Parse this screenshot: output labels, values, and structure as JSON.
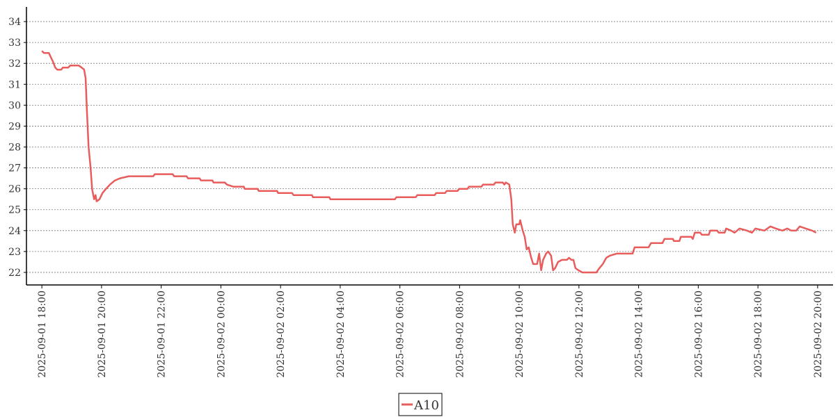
{
  "chart_data": {
    "type": "line",
    "x": [
      "2025-09-01 18:00",
      "2025-09-01 18:04",
      "2025-09-01 18:14",
      "2025-09-01 18:18",
      "2025-09-01 18:22",
      "2025-09-01 18:27",
      "2025-09-01 18:31",
      "2025-09-01 18:39",
      "2025-09-01 18:42",
      "2025-09-01 18:53",
      "2025-09-01 18:57",
      "2025-09-01 19:14",
      "2025-09-01 19:20",
      "2025-09-01 19:25",
      "2025-09-01 19:28",
      "2025-09-01 19:31",
      "2025-09-01 19:34",
      "2025-09-01 19:38",
      "2025-09-01 19:41",
      "2025-09-01 19:45",
      "2025-09-01 19:48",
      "2025-09-01 19:50",
      "2025-09-01 19:56",
      "2025-09-01 20:02",
      "2025-09-01 20:09",
      "2025-09-01 20:17",
      "2025-09-01 20:27",
      "2025-09-01 20:37",
      "2025-09-01 20:55",
      "2025-09-01 21:44",
      "2025-09-01 21:47",
      "2025-09-01 22:23",
      "2025-09-01 22:26",
      "2025-09-01 22:51",
      "2025-09-01 22:54",
      "2025-09-01 23:17",
      "2025-09-01 23:20",
      "2025-09-01 23:43",
      "2025-09-01 23:45",
      "2025-09-02 00:08",
      "2025-09-02 00:12",
      "2025-09-02 00:25",
      "2025-09-02 00:46",
      "2025-09-02 00:48",
      "2025-09-02 01:14",
      "2025-09-02 01:16",
      "2025-09-02 01:53",
      "2025-09-02 01:55",
      "2025-09-02 02:23",
      "2025-09-02 02:26",
      "2025-09-02 03:03",
      "2025-09-02 03:05",
      "2025-09-02 03:38",
      "2025-09-02 03:40",
      "2025-09-02 05:50",
      "2025-09-02 05:53",
      "2025-09-02 06:32",
      "2025-09-02 06:35",
      "2025-09-02 07:10",
      "2025-09-02 07:13",
      "2025-09-02 07:31",
      "2025-09-02 07:34",
      "2025-09-02 07:56",
      "2025-09-02 07:59",
      "2025-09-02 08:16",
      "2025-09-02 08:19",
      "2025-09-02 08:44",
      "2025-09-02 08:47",
      "2025-09-02 09:09",
      "2025-09-02 09:12",
      "2025-09-02 09:27",
      "2025-09-02 09:30",
      "2025-09-02 09:33",
      "2025-09-02 09:40",
      "2025-09-02 09:44",
      "2025-09-02 09:47",
      "2025-09-02 09:51",
      "2025-09-02 09:54",
      "2025-09-02 10:00",
      "2025-09-02 10:02",
      "2025-09-02 10:07",
      "2025-09-02 10:11",
      "2025-09-02 10:15",
      "2025-09-02 10:19",
      "2025-09-02 10:24",
      "2025-09-02 10:28",
      "2025-09-02 10:36",
      "2025-09-02 10:40",
      "2025-09-02 10:44",
      "2025-09-02 10:48",
      "2025-09-02 10:54",
      "2025-09-02 10:58",
      "2025-09-02 11:04",
      "2025-09-02 11:08",
      "2025-09-02 11:12",
      "2025-09-02 11:18",
      "2025-09-02 11:26",
      "2025-09-02 11:36",
      "2025-09-02 11:40",
      "2025-09-02 11:45",
      "2025-09-02 11:49",
      "2025-09-02 11:53",
      "2025-09-02 11:59",
      "2025-09-02 12:07",
      "2025-09-02 12:35",
      "2025-09-02 12:41",
      "2025-09-02 12:48",
      "2025-09-02 12:55",
      "2025-09-02 13:02",
      "2025-09-02 13:16",
      "2025-09-02 13:48",
      "2025-09-02 13:52",
      "2025-09-02 14:20",
      "2025-09-02 14:25",
      "2025-09-02 14:48",
      "2025-09-02 14:52",
      "2025-09-02 15:09",
      "2025-09-02 15:11",
      "2025-09-02 15:22",
      "2025-09-02 15:25",
      "2025-09-02 15:46",
      "2025-09-02 15:49",
      "2025-09-02 15:53",
      "2025-09-02 16:04",
      "2025-09-02 16:07",
      "2025-09-02 16:21",
      "2025-09-02 16:24",
      "2025-09-02 16:38",
      "2025-09-02 16:41",
      "2025-09-02 16:53",
      "2025-09-02 16:56",
      "2025-09-02 17:06",
      "2025-09-02 17:13",
      "2025-09-02 17:23",
      "2025-09-02 17:38",
      "2025-09-02 17:48",
      "2025-09-02 17:55",
      "2025-09-02 18:13",
      "2025-09-02 18:25",
      "2025-09-02 18:36",
      "2025-09-02 18:49",
      "2025-09-02 18:59",
      "2025-09-02 19:07",
      "2025-09-02 19:17",
      "2025-09-02 19:24",
      "2025-09-02 19:36",
      "2025-09-02 19:49",
      "2025-09-02 19:57"
    ],
    "series": [
      {
        "name": "A10",
        "color": "#e85c5c",
        "values": [
          32.6,
          32.5,
          32.5,
          32.3,
          32.1,
          31.8,
          31.7,
          31.7,
          31.8,
          31.8,
          31.9,
          31.9,
          31.8,
          31.7,
          31.3,
          29.5,
          28,
          27,
          26,
          25.5,
          25.7,
          25.4,
          25.5,
          25.8,
          26.0,
          26.2,
          26.4,
          26.5,
          26.6,
          26.6,
          26.7,
          26.7,
          26.6,
          26.6,
          26.5,
          26.5,
          26.4,
          26.4,
          26.3,
          26.3,
          26.2,
          26.1,
          26.1,
          26.0,
          26.0,
          25.9,
          25.9,
          25.8,
          25.8,
          25.7,
          25.7,
          25.6,
          25.6,
          25.5,
          25.5,
          25.6,
          25.6,
          25.7,
          25.7,
          25.8,
          25.8,
          25.9,
          25.9,
          26.0,
          26.0,
          26.1,
          26.1,
          26.2,
          26.2,
          26.3,
          26.3,
          26.2,
          26.3,
          26.2,
          25.5,
          24.3,
          23.9,
          24.3,
          24.3,
          24.5,
          24.0,
          23.7,
          23.1,
          23.2,
          22.7,
          22.4,
          22.4,
          22.9,
          22.1,
          22.6,
          22.9,
          23.0,
          22.8,
          22.1,
          22.2,
          22.5,
          22.6,
          22.6,
          22.7,
          22.6,
          22.6,
          22.2,
          22.1,
          22.0,
          22.0,
          22.2,
          22.4,
          22.7,
          22.8,
          22.9,
          22.9,
          23.2,
          23.2,
          23.4,
          23.4,
          23.6,
          23.6,
          23.5,
          23.5,
          23.7,
          23.7,
          23.6,
          23.9,
          23.9,
          23.8,
          23.8,
          24.0,
          24.0,
          23.9,
          23.9,
          24.1,
          24.0,
          23.9,
          24.1,
          24.0,
          23.9,
          24.1,
          24.0,
          24.2,
          24.1,
          24.0,
          24.1,
          24.0,
          24.0,
          24.2,
          24.1,
          24.0,
          23.9
        ]
      }
    ],
    "xlim": [
      "2025-09-01 17:29",
      "2025-09-02 20:31"
    ],
    "xticks": [
      "2025-09-01 18:00",
      "2025-09-01 20:00",
      "2025-09-01 22:00",
      "2025-09-02 00:00",
      "2025-09-02 02:00",
      "2025-09-02 04:00",
      "2025-09-02 06:00",
      "2025-09-02 08:00",
      "2025-09-02 10:00",
      "2025-09-02 12:00",
      "2025-09-02 14:00",
      "2025-09-02 16:00",
      "2025-09-02 18:00",
      "2025-09-02 20:00"
    ],
    "ylim": [
      21.4,
      34.7
    ],
    "yticks": [
      22,
      23,
      24,
      25,
      26,
      27,
      28,
      29,
      30,
      31,
      32,
      33,
      34
    ],
    "grid": true,
    "legend": "bottom"
  }
}
